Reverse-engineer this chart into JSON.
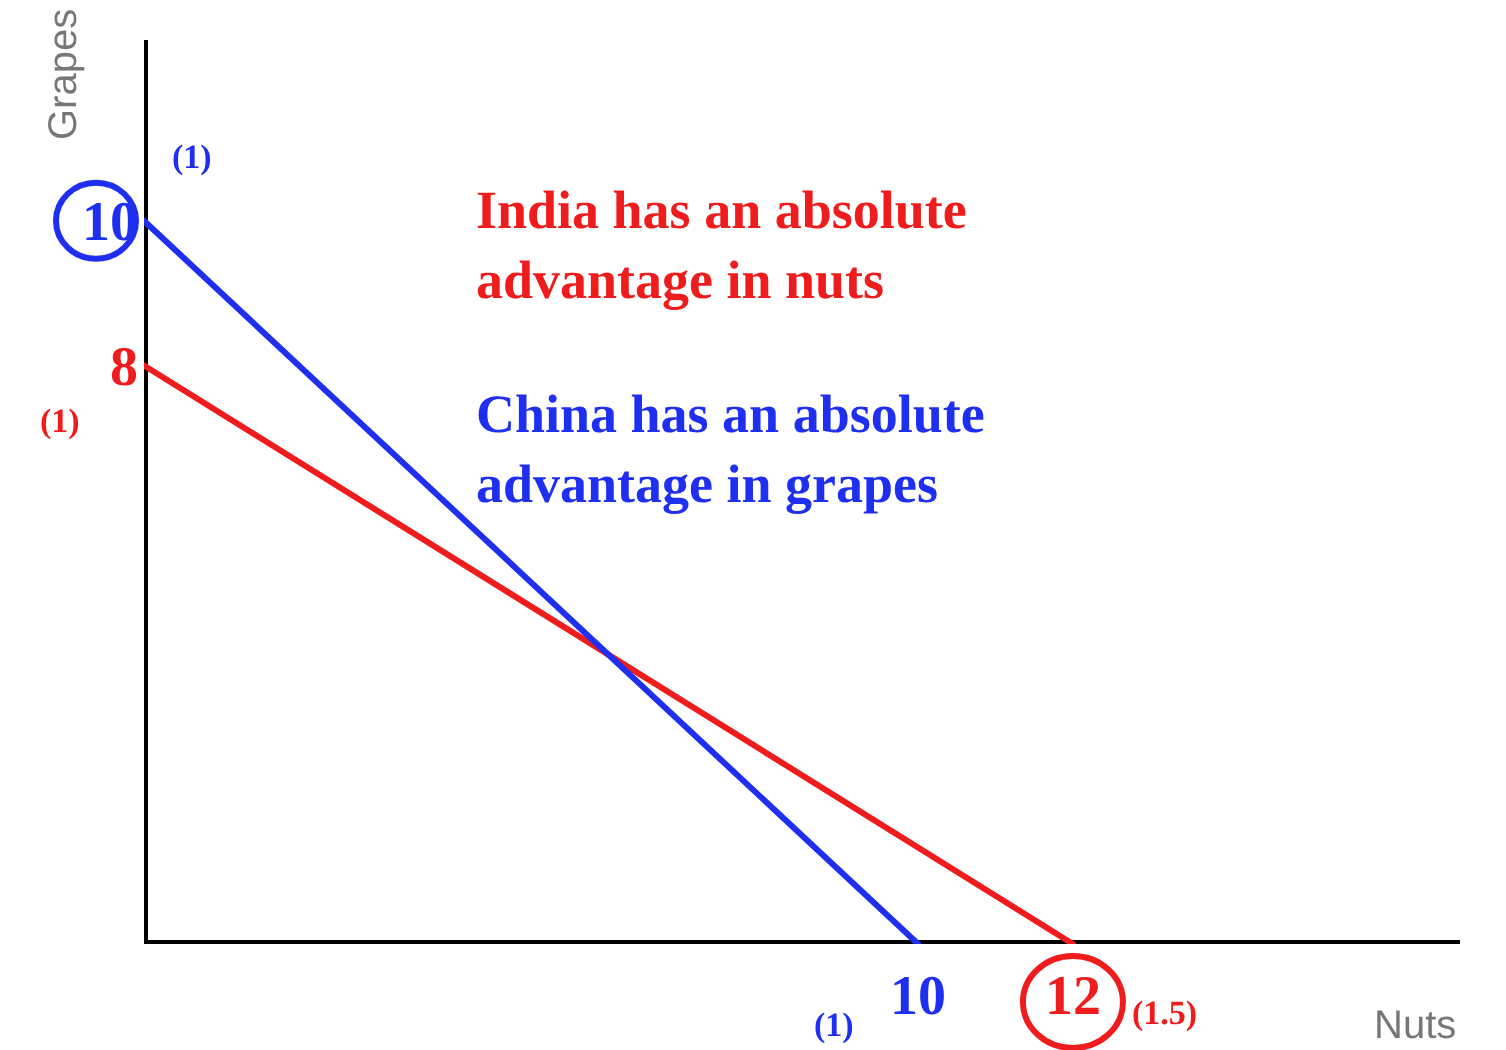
{
  "chart_data": {
    "type": "line",
    "xlabel": "Nuts",
    "ylabel": "Grapes",
    "series": [
      {
        "color": "#ee1c1c",
        "x": [
          0,
          12
        ],
        "values": [
          8,
          0
        ]
      },
      {
        "color": "#1f2ff0",
        "x": [
          0,
          10
        ],
        "values": [
          10,
          0
        ]
      }
    ],
    "xlim": [
      0,
      17
    ],
    "ylim": [
      0,
      12.5
    ],
    "xticks": [
      10,
      12
    ],
    "yticks": [
      8,
      10
    ],
    "grid": false,
    "marker": "none",
    "line_style": "solid",
    "annotations": [
      "India has an absolute advantage in nuts",
      "China has an absolute advantage in grapes",
      {
        "text": "(1)",
        "x": 0,
        "y": 10
      },
      {
        "text": "(1)",
        "x": 0,
        "y": 8
      },
      {
        "text": "(1)",
        "x": 10,
        "y": 0
      },
      {
        "text": "(1.5)",
        "x": 12,
        "y": 0
      }
    ]
  }
}
